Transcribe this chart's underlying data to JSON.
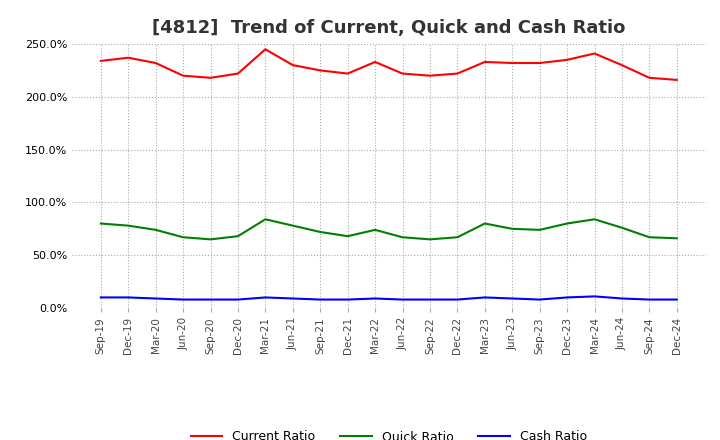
{
  "title": "[4812]  Trend of Current, Quick and Cash Ratio",
  "title_fontsize": 13,
  "x_labels": [
    "Sep-19",
    "Dec-19",
    "Mar-20",
    "Jun-20",
    "Sep-20",
    "Dec-20",
    "Mar-21",
    "Jun-21",
    "Sep-21",
    "Dec-21",
    "Mar-22",
    "Jun-22",
    "Sep-22",
    "Dec-22",
    "Mar-23",
    "Jun-23",
    "Sep-23",
    "Dec-23",
    "Mar-24",
    "Jun-24",
    "Sep-24",
    "Dec-24"
  ],
  "current_ratio": [
    234,
    237,
    232,
    220,
    218,
    222,
    245,
    230,
    225,
    222,
    233,
    222,
    220,
    222,
    233,
    232,
    232,
    235,
    241,
    230,
    218,
    216
  ],
  "quick_ratio": [
    80,
    78,
    74,
    67,
    65,
    68,
    84,
    78,
    72,
    68,
    74,
    67,
    65,
    67,
    80,
    75,
    74,
    80,
    84,
    76,
    67,
    66
  ],
  "cash_ratio": [
    10,
    10,
    9,
    8,
    8,
    8,
    10,
    9,
    8,
    8,
    9,
    8,
    8,
    8,
    10,
    9,
    8,
    10,
    11,
    9,
    8,
    8
  ],
  "current_color": "#ff0000",
  "quick_color": "#008000",
  "cash_color": "#0000ff",
  "ylim": [
    0,
    250
  ],
  "yticks": [
    0,
    50,
    100,
    150,
    200,
    250
  ],
  "background_color": "#ffffff",
  "grid_color": "#aaaaaa",
  "legend_labels": [
    "Current Ratio",
    "Quick Ratio",
    "Cash Ratio"
  ]
}
